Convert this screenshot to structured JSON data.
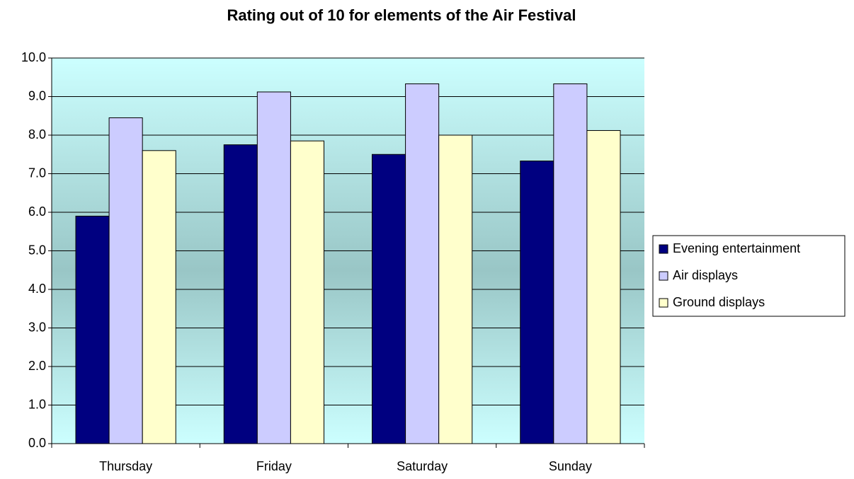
{
  "chart_data": {
    "type": "bar",
    "title": "Rating out of 10 for elements of the Air Festival",
    "categories": [
      "Thursday",
      "Friday",
      "Saturday",
      "Sunday"
    ],
    "series": [
      {
        "name": "Evening entertainment",
        "color": "#000080",
        "values": [
          5.9,
          7.75,
          7.5,
          7.33
        ]
      },
      {
        "name": "Air displays",
        "color": "#ccccff",
        "values": [
          8.45,
          9.12,
          9.33,
          9.33
        ]
      },
      {
        "name": "Ground displays",
        "color": "#ffffcc",
        "values": [
          7.6,
          7.85,
          8.0,
          8.12
        ]
      }
    ],
    "ylim": [
      0,
      10
    ],
    "yticks": [
      {
        "value": 0,
        "label": "0.0"
      },
      {
        "value": 1,
        "label": "1.0"
      },
      {
        "value": 2,
        "label": "2.0"
      },
      {
        "value": 3,
        "label": "3.0"
      },
      {
        "value": 4,
        "label": "4.0"
      },
      {
        "value": 5,
        "label": "5.0"
      },
      {
        "value": 6,
        "label": "6.0"
      },
      {
        "value": 7,
        "label": "7.0"
      },
      {
        "value": 8,
        "label": "8.0"
      },
      {
        "value": 9,
        "label": "9.0"
      },
      {
        "value": 10,
        "label": "10.0"
      }
    ],
    "grid": true,
    "legend": "right"
  }
}
